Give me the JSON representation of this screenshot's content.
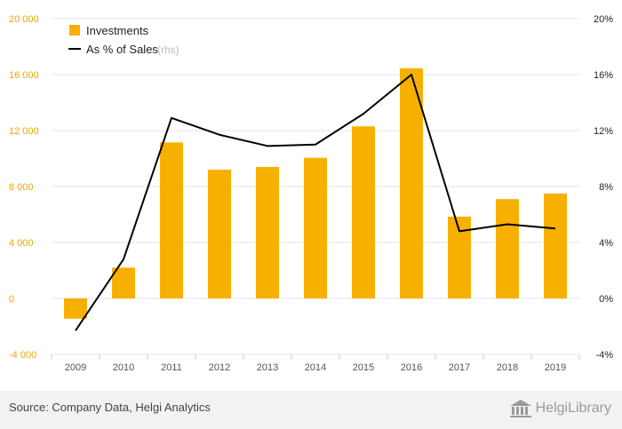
{
  "colors": {
    "bar": "#f7b000",
    "line": "#000000",
    "grid": "#e6e6e6",
    "left_axis_text": "#f0a500"
  },
  "legend": {
    "bar_label": "Investments",
    "line_label": "As % of Sales",
    "line_suffix": "(rhs)"
  },
  "footer": {
    "source": "Source: Company Data, Helgi Analytics",
    "brand": "HelgiLibrary",
    "brand_icon": "library-building-icon"
  },
  "chart_data": {
    "type": "bar",
    "categories": [
      "2009",
      "2010",
      "2011",
      "2012",
      "2013",
      "2014",
      "2015",
      "2016",
      "2017",
      "2018",
      "2019"
    ],
    "series": [
      {
        "name": "Investments",
        "type": "bar",
        "axis": "left",
        "values": [
          -1450,
          2200,
          11150,
          9200,
          9400,
          10050,
          12300,
          16450,
          5850,
          7100,
          7500
        ]
      },
      {
        "name": "As % of Sales",
        "type": "line",
        "axis": "right",
        "values": [
          -2.3,
          2.8,
          12.9,
          11.7,
          10.9,
          11.0,
          13.2,
          16.0,
          4.8,
          5.3,
          5.0
        ]
      }
    ],
    "y_left": {
      "min": -4000,
      "max": 20000,
      "ticks": [
        "-4 000",
        "0",
        "4 000",
        "8 000",
        "12 000",
        "16 000",
        "20 000"
      ]
    },
    "y_right": {
      "min": -4,
      "max": 20,
      "ticks": [
        "-4%",
        "0%",
        "4%",
        "8%",
        "12%",
        "16%",
        "20%"
      ]
    },
    "grid": true,
    "legend_position": "top-left"
  }
}
